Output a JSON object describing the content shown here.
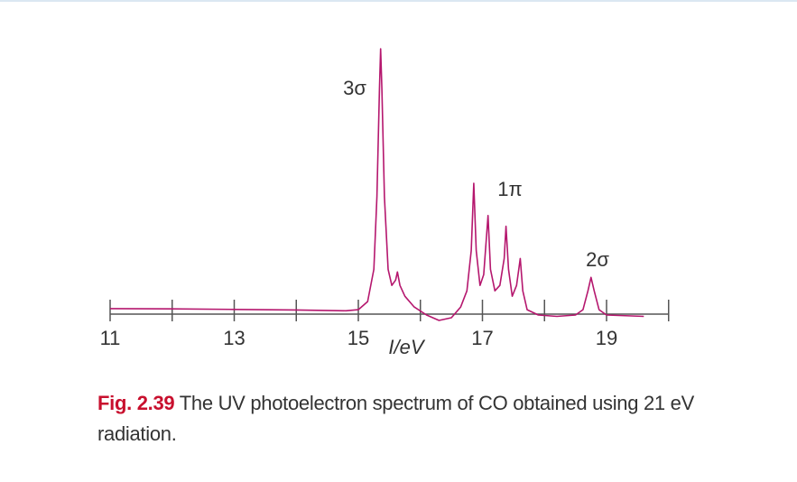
{
  "chart_data": {
    "type": "line",
    "x_label": "I/eV",
    "x": [
      11,
      12,
      13,
      14,
      14.8,
      15.0,
      15.15,
      15.25,
      15.3,
      15.34,
      15.36,
      15.38,
      15.42,
      15.48,
      15.54,
      15.6,
      15.63,
      15.67,
      15.75,
      15.9,
      16.1,
      16.3,
      16.5,
      16.65,
      16.75,
      16.82,
      16.86,
      16.9,
      16.96,
      17.02,
      17.09,
      17.13,
      17.2,
      17.28,
      17.35,
      17.38,
      17.42,
      17.48,
      17.55,
      17.61,
      17.65,
      17.72,
      17.9,
      18.2,
      18.5,
      18.62,
      18.7,
      18.75,
      18.8,
      18.88,
      19.0,
      19.6
    ],
    "series": [
      {
        "color": "#b5176e",
        "values": [
          3.4,
          3.3,
          3.1,
          2.9,
          2.6,
          3.0,
          6,
          18,
          45,
          85,
          100,
          85,
          45,
          18,
          12,
          14,
          17,
          12,
          8,
          4,
          1,
          -1,
          0,
          4,
          10,
          25,
          50,
          25,
          12,
          16,
          38,
          18,
          10,
          12,
          22,
          34,
          18,
          8,
          12,
          22,
          10,
          3,
          1,
          0.5,
          1,
          3,
          10,
          15,
          10,
          3,
          1,
          0.5
        ]
      }
    ],
    "xlim": [
      11,
      20
    ],
    "xticks": [
      11,
      13,
      15,
      17,
      19
    ],
    "xminor_ticks": [
      12,
      14,
      16,
      18,
      20
    ],
    "ylim": [
      0,
      100
    ],
    "annotations": [
      "3σ",
      "1π",
      "2σ"
    ],
    "caption": {
      "label": "Fig. 2.39",
      "text": "The UV photoelectron spectrum of CO obtained using 21 eV radiation."
    }
  }
}
